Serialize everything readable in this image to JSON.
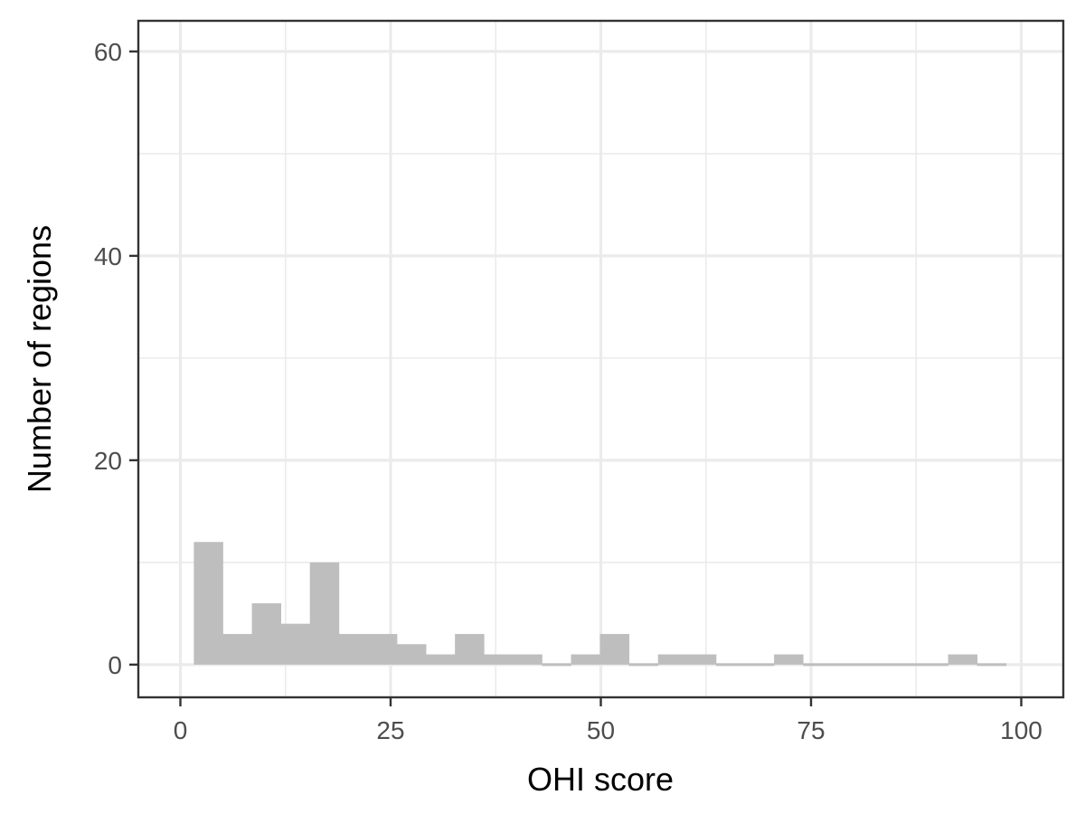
{
  "chart_data": {
    "type": "bar",
    "xlabel": "OHI score",
    "ylabel": "Number of regions",
    "xlim": [
      -5,
      105
    ],
    "ylim": [
      -3.2,
      63
    ],
    "x_ticks": [
      0,
      25,
      50,
      75,
      100
    ],
    "x_tick_labels": [
      "0",
      "25",
      "50",
      "75",
      "100"
    ],
    "y_ticks": [
      0,
      20,
      40,
      60
    ],
    "y_tick_labels": [
      "0",
      "20",
      "40",
      "60"
    ],
    "grid": true,
    "bin_width": 3.45,
    "bins": [
      {
        "x0": 1.6,
        "x1": 5.05,
        "count": 12
      },
      {
        "x0": 5.05,
        "x1": 8.5,
        "count": 3
      },
      {
        "x0": 8.5,
        "x1": 11.95,
        "count": 6
      },
      {
        "x0": 11.95,
        "x1": 15.4,
        "count": 4
      },
      {
        "x0": 15.4,
        "x1": 18.85,
        "count": 10
      },
      {
        "x0": 18.85,
        "x1": 22.3,
        "count": 3
      },
      {
        "x0": 22.3,
        "x1": 25.75,
        "count": 3
      },
      {
        "x0": 25.75,
        "x1": 29.2,
        "count": 2
      },
      {
        "x0": 29.2,
        "x1": 32.65,
        "count": 1
      },
      {
        "x0": 32.65,
        "x1": 36.1,
        "count": 3
      },
      {
        "x0": 36.1,
        "x1": 39.55,
        "count": 1
      },
      {
        "x0": 39.55,
        "x1": 43.0,
        "count": 1
      },
      {
        "x0": 43.0,
        "x1": 46.45,
        "count": 0
      },
      {
        "x0": 46.45,
        "x1": 49.9,
        "count": 1
      },
      {
        "x0": 49.9,
        "x1": 53.35,
        "count": 3
      },
      {
        "x0": 53.35,
        "x1": 56.8,
        "count": 0
      },
      {
        "x0": 56.8,
        "x1": 60.25,
        "count": 1
      },
      {
        "x0": 60.25,
        "x1": 63.7,
        "count": 1
      },
      {
        "x0": 63.7,
        "x1": 67.15,
        "count": 0
      },
      {
        "x0": 67.15,
        "x1": 70.6,
        "count": 0
      },
      {
        "x0": 70.6,
        "x1": 74.05,
        "count": 1
      },
      {
        "x0": 74.05,
        "x1": 77.5,
        "count": 0
      },
      {
        "x0": 77.5,
        "x1": 80.95,
        "count": 0
      },
      {
        "x0": 80.95,
        "x1": 84.4,
        "count": 0
      },
      {
        "x0": 84.4,
        "x1": 87.85,
        "count": 0
      },
      {
        "x0": 87.85,
        "x1": 91.3,
        "count": 0
      },
      {
        "x0": 91.3,
        "x1": 94.75,
        "count": 1
      },
      {
        "x0": 94.75,
        "x1": 98.2,
        "count": 0
      }
    ],
    "bar_color": "#bebebe",
    "panel_border_color": "#333333",
    "grid_color": "#ebebeb"
  }
}
